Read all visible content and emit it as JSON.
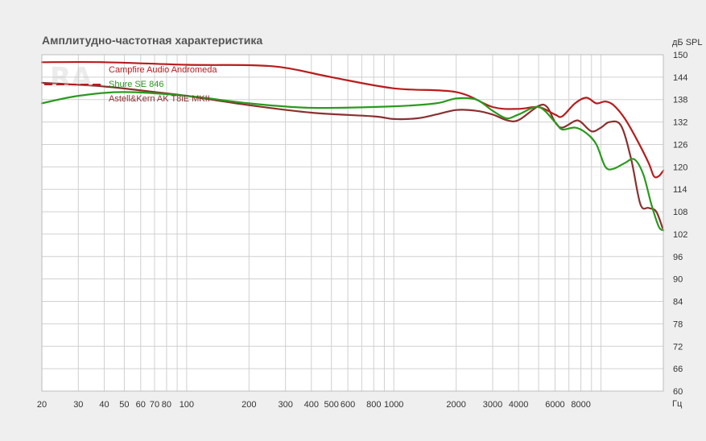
{
  "chart_data": {
    "type": "line",
    "title": "Амплитудно-частотная характеристика",
    "ylabel": "дБ SPL",
    "xlabel": "Гц",
    "x_scale": "log",
    "xlim": [
      20,
      20000
    ],
    "ylim": [
      60,
      150
    ],
    "x_ticks": [
      20,
      30,
      40,
      50,
      60,
      70,
      80,
      100,
      200,
      300,
      400,
      500,
      600,
      800,
      1000,
      2000,
      3000,
      4000,
      6000,
      8000
    ],
    "x_tick_labels": [
      "20",
      "30",
      "40",
      "50",
      "60",
      "70",
      "80",
      "100",
      "200",
      "300",
      "400",
      "500",
      "600",
      "800",
      "1000",
      "2000",
      "3000",
      "4000",
      "6000",
      "8000"
    ],
    "y_ticks": [
      60,
      66,
      72,
      78,
      84,
      90,
      96,
      102,
      108,
      114,
      120,
      126,
      132,
      138,
      144,
      150
    ],
    "y_tick_labels": [
      "60",
      "66",
      "72",
      "78",
      "84",
      "90",
      "96",
      "102",
      "108",
      "114",
      "120",
      "126",
      "132",
      "138",
      "144",
      "150"
    ],
    "grid": true,
    "legend_position": "top-left",
    "series": [
      {
        "name": "Campfire Audio Andromeda",
        "color": "#b81c1c",
        "points": [
          [
            20,
            148
          ],
          [
            40,
            148
          ],
          [
            100,
            147.3
          ],
          [
            200,
            147.2
          ],
          [
            300,
            146.5
          ],
          [
            500,
            144
          ],
          [
            1000,
            141
          ],
          [
            2000,
            140
          ],
          [
            3000,
            136
          ],
          [
            4000,
            135.5
          ],
          [
            5000,
            136
          ],
          [
            6000,
            134
          ],
          [
            6500,
            133.5
          ],
          [
            7500,
            137
          ],
          [
            8500,
            138.5
          ],
          [
            9500,
            137
          ],
          [
            10500,
            137.5
          ],
          [
            11500,
            136.5
          ],
          [
            13000,
            133
          ],
          [
            15000,
            127
          ],
          [
            17000,
            121
          ],
          [
            18000,
            117.5
          ],
          [
            19000,
            117.5
          ],
          [
            20000,
            119
          ]
        ]
      },
      {
        "name": "Shure SE 846",
        "color": "#2a9a1e",
        "points": [
          [
            20,
            137
          ],
          [
            30,
            139
          ],
          [
            50,
            140
          ],
          [
            100,
            139
          ],
          [
            200,
            137
          ],
          [
            400,
            135.8
          ],
          [
            1000,
            136.2
          ],
          [
            1600,
            137
          ],
          [
            2000,
            138.3
          ],
          [
            2500,
            138
          ],
          [
            3000,
            135
          ],
          [
            3500,
            133
          ],
          [
            4000,
            134
          ],
          [
            5000,
            136
          ],
          [
            6000,
            132
          ],
          [
            6500,
            130
          ],
          [
            7500,
            130.5
          ],
          [
            8500,
            129
          ],
          [
            9500,
            126
          ],
          [
            10500,
            120
          ],
          [
            11500,
            119.5
          ],
          [
            13000,
            121
          ],
          [
            14500,
            122
          ],
          [
            16000,
            118
          ],
          [
            17500,
            110
          ],
          [
            19000,
            104
          ],
          [
            20000,
            103
          ]
        ]
      },
      {
        "name": "Astell&Kern AK T8iE MKII",
        "color": "#8b3030",
        "points": [
          [
            20,
            142.5
          ],
          [
            40,
            141.5
          ],
          [
            70,
            140
          ],
          [
            100,
            139
          ],
          [
            200,
            136.5
          ],
          [
            400,
            134.5
          ],
          [
            800,
            133.5
          ],
          [
            1000,
            132.8
          ],
          [
            1300,
            133
          ],
          [
            1600,
            134
          ],
          [
            2000,
            135.2
          ],
          [
            2500,
            135
          ],
          [
            3000,
            134
          ],
          [
            3500,
            132.5
          ],
          [
            4000,
            132.5
          ],
          [
            5000,
            136.3
          ],
          [
            5500,
            136
          ],
          [
            6000,
            132
          ],
          [
            6500,
            130.5
          ],
          [
            7500,
            132.3
          ],
          [
            8000,
            132
          ],
          [
            9000,
            129.5
          ],
          [
            10000,
            130.5
          ],
          [
            11000,
            132
          ],
          [
            12500,
            131
          ],
          [
            14000,
            122
          ],
          [
            15500,
            110
          ],
          [
            17000,
            109
          ],
          [
            18500,
            108
          ],
          [
            20000,
            103
          ]
        ]
      }
    ]
  }
}
